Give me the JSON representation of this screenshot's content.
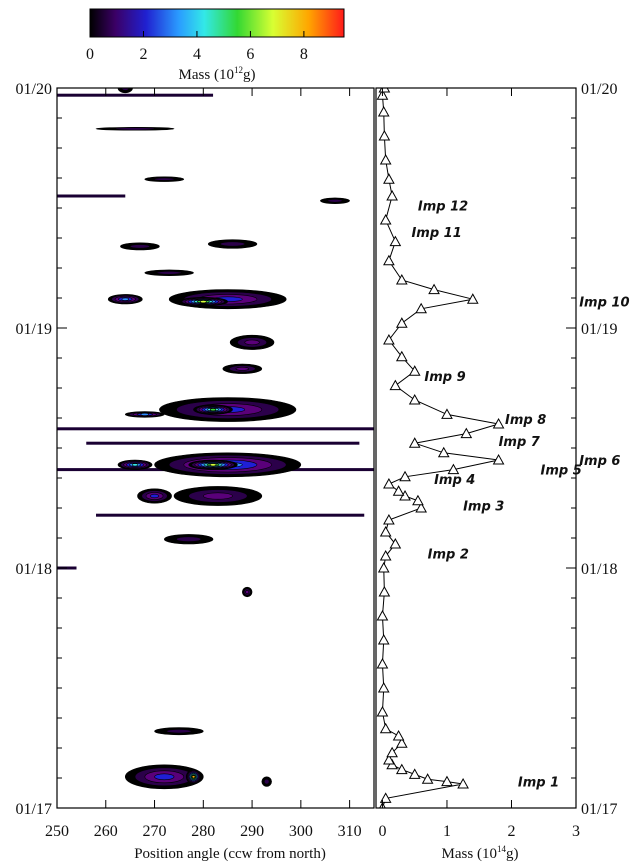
{
  "chart_data": [
    {
      "type": "heatmap",
      "colorbar": {
        "label": "Mass (10",
        "label_sup": "12",
        "label_tail": "g)",
        "ticks": [
          0,
          2,
          4,
          6,
          8
        ],
        "range": [
          0,
          9.5
        ]
      },
      "xlabel": "Position angle (ccw from north)",
      "x_ticks": [
        250,
        260,
        270,
        280,
        290,
        300,
        310
      ],
      "xlim": [
        250,
        315
      ],
      "y_ticks": [
        "01/17",
        "01/18",
        "01/19",
        "01/20"
      ],
      "ylim": [
        "01/17",
        "01/20"
      ],
      "colors": [
        "#000000",
        "#2b004a",
        "#5a007a",
        "#1f1fd6",
        "#2f8cff",
        "#39e6e6",
        "#3ad83a",
        "#d8ff3a",
        "#ffb000",
        "#e60000"
      ],
      "blobs": [
        {
          "x": 264,
          "y": 3.0,
          "w": 3,
          "h": 0.02,
          "v": 0.3
        },
        {
          "x": 266,
          "y": 2.83,
          "w": 16,
          "h": 0.006,
          "v": 0.3
        },
        {
          "x": 272,
          "y": 2.62,
          "w": 8,
          "h": 0.01,
          "v": 0.3
        },
        {
          "x": 307,
          "y": 2.53,
          "w": 6,
          "h": 0.012,
          "v": 0.3
        },
        {
          "x": 286,
          "y": 2.35,
          "w": 10,
          "h": 0.018,
          "v": 0.4
        },
        {
          "x": 267,
          "y": 2.34,
          "w": 8,
          "h": 0.015,
          "v": 0.4
        },
        {
          "x": 273,
          "y": 2.23,
          "w": 10,
          "h": 0.012,
          "v": 0.4
        },
        {
          "x": 285,
          "y": 2.12,
          "w": 24,
          "h": 0.04,
          "v": 1.5
        },
        {
          "x": 280,
          "y": 2.11,
          "w": 10,
          "h": 0.018,
          "v": 5.5
        },
        {
          "x": 264,
          "y": 2.12,
          "w": 7,
          "h": 0.02,
          "v": 2.5
        },
        {
          "x": 290,
          "y": 1.94,
          "w": 9,
          "h": 0.03,
          "v": 0.8
        },
        {
          "x": 288,
          "y": 1.83,
          "w": 8,
          "h": 0.02,
          "v": 0.5
        },
        {
          "x": 285,
          "y": 1.66,
          "w": 28,
          "h": 0.05,
          "v": 2.0
        },
        {
          "x": 282,
          "y": 1.66,
          "w": 8,
          "h": 0.02,
          "v": 4.5
        },
        {
          "x": 268,
          "y": 1.64,
          "w": 8,
          "h": 0.012,
          "v": 3.0
        },
        {
          "x": 285,
          "y": 1.43,
          "w": 30,
          "h": 0.05,
          "v": 2.5
        },
        {
          "x": 282,
          "y": 1.43,
          "w": 10,
          "h": 0.02,
          "v": 6.0
        },
        {
          "x": 266,
          "y": 1.43,
          "w": 7,
          "h": 0.02,
          "v": 4.0
        },
        {
          "x": 283,
          "y": 1.3,
          "w": 18,
          "h": 0.04,
          "v": 0.9
        },
        {
          "x": 270,
          "y": 1.3,
          "w": 7,
          "h": 0.03,
          "v": 1.5
        },
        {
          "x": 277,
          "y": 1.12,
          "w": 10,
          "h": 0.02,
          "v": 0.4
        },
        {
          "x": 289,
          "y": 0.9,
          "w": 2,
          "h": 0.02,
          "v": 0.5
        },
        {
          "x": 275,
          "y": 0.32,
          "w": 10,
          "h": 0.015,
          "v": 0.3
        },
        {
          "x": 272,
          "y": 0.13,
          "w": 16,
          "h": 0.05,
          "v": 2.0
        },
        {
          "x": 278,
          "y": 0.13,
          "w": 3,
          "h": 0.03,
          "v": 6.5
        },
        {
          "x": 293,
          "y": 0.11,
          "w": 2,
          "h": 0.02,
          "v": 0.3
        }
      ],
      "streaks": [
        {
          "y": 2.97,
          "x1": 250,
          "x2": 282
        },
        {
          "y": 2.55,
          "x1": 250,
          "x2": 264
        },
        {
          "y": 1.58,
          "x1": 250,
          "x2": 315
        },
        {
          "y": 1.52,
          "x1": 256,
          "x2": 312
        },
        {
          "y": 1.41,
          "x1": 250,
          "x2": 315
        },
        {
          "y": 1.22,
          "x1": 258,
          "x2": 313
        },
        {
          "y": 1.0,
          "x1": 250,
          "x2": 254
        }
      ]
    },
    {
      "type": "line",
      "xlabel": "Mass (10",
      "xlabel_sup": "14",
      "xlabel_tail": "g)",
      "x_ticks": [
        0,
        1,
        2,
        3
      ],
      "xlim": [
        -0.1,
        3.0
      ],
      "y_ticks": [
        "01/17",
        "01/18",
        "01/19",
        "01/20"
      ],
      "ylim": [
        "01/17",
        "01/20"
      ],
      "points": [
        [
          0.0,
          0.0
        ],
        [
          0.05,
          0.04
        ],
        [
          1.25,
          0.1
        ],
        [
          1.0,
          0.11
        ],
        [
          0.7,
          0.12
        ],
        [
          0.5,
          0.14
        ],
        [
          0.3,
          0.16
        ],
        [
          0.15,
          0.18
        ],
        [
          0.1,
          0.2
        ],
        [
          0.15,
          0.23
        ],
        [
          0.3,
          0.27
        ],
        [
          0.25,
          0.3
        ],
        [
          0.05,
          0.33
        ],
        [
          0.0,
          0.4
        ],
        [
          0.02,
          0.5
        ],
        [
          0.0,
          0.6
        ],
        [
          0.02,
          0.7
        ],
        [
          0.0,
          0.8
        ],
        [
          0.03,
          0.9
        ],
        [
          0.02,
          1.0
        ],
        [
          0.05,
          1.05
        ],
        [
          0.2,
          1.1
        ],
        [
          0.05,
          1.15
        ],
        [
          0.1,
          1.2
        ],
        [
          0.6,
          1.25
        ],
        [
          0.55,
          1.28
        ],
        [
          0.35,
          1.3
        ],
        [
          0.25,
          1.32
        ],
        [
          0.1,
          1.35
        ],
        [
          0.35,
          1.38
        ],
        [
          1.1,
          1.41
        ],
        [
          1.8,
          1.45
        ],
        [
          0.95,
          1.48
        ],
        [
          0.5,
          1.52
        ],
        [
          1.3,
          1.56
        ],
        [
          1.8,
          1.6
        ],
        [
          1.0,
          1.64
        ],
        [
          0.5,
          1.7
        ],
        [
          0.2,
          1.76
        ],
        [
          0.5,
          1.82
        ],
        [
          0.3,
          1.88
        ],
        [
          0.1,
          1.95
        ],
        [
          0.3,
          2.02
        ],
        [
          0.6,
          2.08
        ],
        [
          1.4,
          2.12
        ],
        [
          0.8,
          2.16
        ],
        [
          0.3,
          2.2
        ],
        [
          0.1,
          2.28
        ],
        [
          0.2,
          2.36
        ],
        [
          0.05,
          2.45
        ],
        [
          0.15,
          2.55
        ],
        [
          0.1,
          2.62
        ],
        [
          0.05,
          2.7
        ],
        [
          0.03,
          2.8
        ],
        [
          0.02,
          2.9
        ],
        [
          0.0,
          2.97
        ],
        [
          0.03,
          3.0
        ]
      ],
      "annotations": [
        {
          "label": "Imp 1",
          "x": 2.1,
          "y": 0.11
        },
        {
          "label": "Imp 2",
          "x": 0.7,
          "y": 1.06
        },
        {
          "label": "Imp 3",
          "x": 1.25,
          "y": 1.26
        },
        {
          "label": "Imp 4",
          "x": 0.8,
          "y": 1.37
        },
        {
          "label": "Imp 5",
          "x": 2.45,
          "y": 1.41
        },
        {
          "label": "Imp 6",
          "x": 3.05,
          "y": 1.45
        },
        {
          "label": "Imp 7",
          "x": 1.8,
          "y": 1.53
        },
        {
          "label": "Imp 8",
          "x": 1.9,
          "y": 1.62
        },
        {
          "label": "Imp 9",
          "x": 0.65,
          "y": 1.8
        },
        {
          "label": "Imp 10",
          "x": 3.05,
          "y": 2.11
        },
        {
          "label": "Imp 11",
          "x": 0.45,
          "y": 2.4
        },
        {
          "label": "Imp 12",
          "x": 0.55,
          "y": 2.51
        }
      ]
    }
  ]
}
